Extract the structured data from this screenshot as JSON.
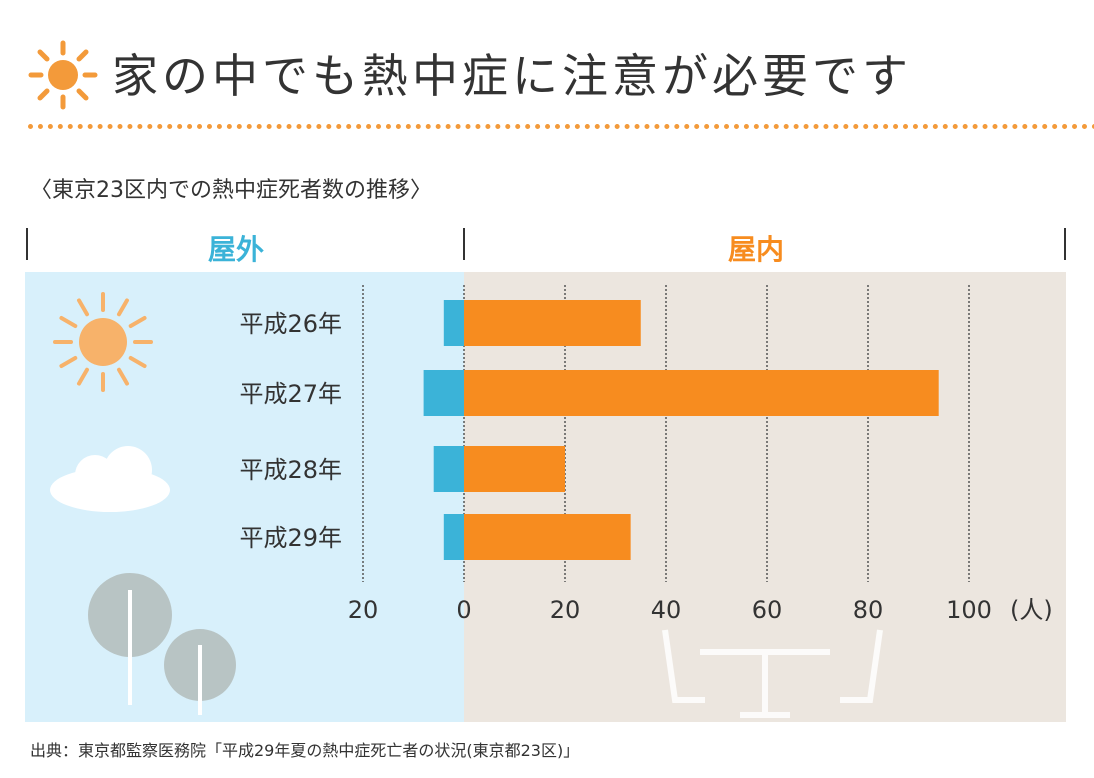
{
  "title": "家の中でも熱中症に注意が必要です",
  "subtitle": "〈東京23区内での熱中症死者数の推移〉",
  "source": "出典：東京都監察医務院「平成29年夏の熱中症死亡者の状況(東京都23区)」",
  "colors": {
    "outdoor": "#3bb3d8",
    "indoor": "#f78c1f",
    "outdoor_bg": "#d8f0fb",
    "indoor_bg": "#ece6df",
    "accent": "#f39a3a"
  },
  "chart_data": {
    "type": "bar",
    "orientation": "horizontal-diverging",
    "categories": [
      "平成26年",
      "平成27年",
      "平成28年",
      "平成29年"
    ],
    "series": [
      {
        "name": "屋外",
        "values": [
          4,
          8,
          6,
          4
        ]
      },
      {
        "name": "屋内",
        "values": [
          35,
          94,
          20,
          33
        ]
      }
    ],
    "xticks": [
      "20",
      "0",
      "20",
      "40",
      "60",
      "80",
      "100"
    ],
    "xunit": "(人)",
    "xlim": [
      -20,
      100
    ],
    "grid": true
  }
}
